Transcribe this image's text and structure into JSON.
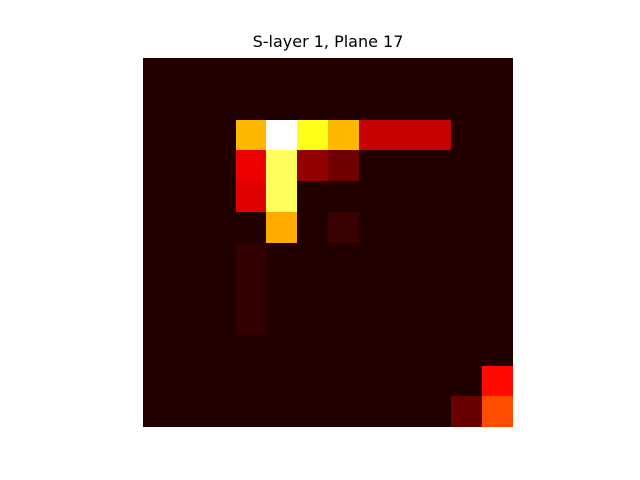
{
  "chart_data": {
    "type": "heatmap",
    "title": "S-layer 1, Plane 17",
    "rows": 12,
    "cols": 12,
    "colormap": "hot",
    "values": [
      [
        0.05,
        0.05,
        0.05,
        0.05,
        0.05,
        0.05,
        0.05,
        0.05,
        0.05,
        0.05,
        0.05,
        0.05
      ],
      [
        0.05,
        0.05,
        0.05,
        0.05,
        0.05,
        0.05,
        0.05,
        0.05,
        0.05,
        0.05,
        0.05,
        0.05
      ],
      [
        0.05,
        0.05,
        0.05,
        0.64,
        1.0,
        0.77,
        0.64,
        0.28,
        0.28,
        0.28,
        0.05,
        0.05
      ],
      [
        0.05,
        0.05,
        0.05,
        0.34,
        0.84,
        0.21,
        0.16,
        0.05,
        0.05,
        0.05,
        0.05,
        0.05
      ],
      [
        0.05,
        0.05,
        0.05,
        0.32,
        0.84,
        0.05,
        0.05,
        0.05,
        0.05,
        0.05,
        0.05,
        0.05
      ],
      [
        0.05,
        0.05,
        0.05,
        0.05,
        0.62,
        0.05,
        0.08,
        0.05,
        0.05,
        0.05,
        0.05,
        0.05
      ],
      [
        0.05,
        0.05,
        0.05,
        0.07,
        0.05,
        0.05,
        0.05,
        0.05,
        0.05,
        0.05,
        0.05,
        0.05
      ],
      [
        0.05,
        0.05,
        0.05,
        0.07,
        0.05,
        0.05,
        0.05,
        0.05,
        0.05,
        0.05,
        0.05,
        0.05
      ],
      [
        0.05,
        0.05,
        0.05,
        0.07,
        0.05,
        0.05,
        0.05,
        0.05,
        0.05,
        0.05,
        0.05,
        0.05
      ],
      [
        0.05,
        0.05,
        0.05,
        0.05,
        0.05,
        0.05,
        0.05,
        0.05,
        0.05,
        0.05,
        0.05,
        0.05
      ],
      [
        0.05,
        0.05,
        0.05,
        0.05,
        0.05,
        0.05,
        0.05,
        0.05,
        0.05,
        0.05,
        0.05,
        0.38
      ],
      [
        0.05,
        0.05,
        0.05,
        0.05,
        0.05,
        0.05,
        0.05,
        0.05,
        0.05,
        0.05,
        0.15,
        0.48
      ]
    ],
    "axes_visible": false
  }
}
